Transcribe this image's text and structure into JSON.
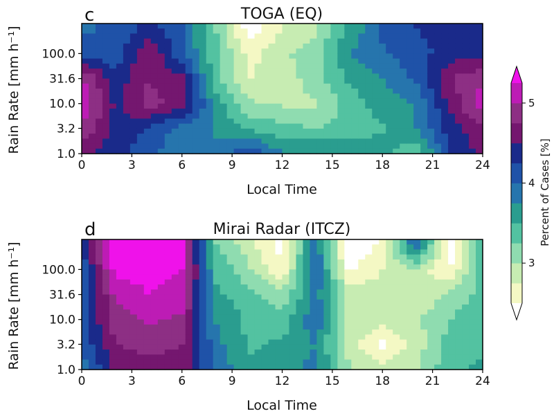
{
  "figure": {
    "colorbar": {
      "label": "Percent of Cases [%]",
      "tick_labels": [
        "3",
        "4",
        "5"
      ],
      "levels": [
        2.5,
        2.75,
        3.0,
        3.25,
        3.5,
        3.75,
        4.0,
        4.25,
        4.5,
        4.75,
        5.0,
        5.25,
        5.5
      ],
      "colors": [
        "#ffffff",
        "#f4f8c4",
        "#c7ecb2",
        "#8fdcb0",
        "#53c2a1",
        "#2a9d8f",
        "#2675ad",
        "#1f52a8",
        "#1a2a8a",
        "#74176f",
        "#8d2f84",
        "#bd1cb5",
        "#ef12ea"
      ],
      "extend": "both"
    }
  },
  "chart_data": [
    {
      "type": "heatmap",
      "panel": "c",
      "title": "TOGA (EQ)",
      "xlabel": "Local Time",
      "ylabel": "Rain Rate [mm h⁻¹]",
      "xticks": [
        "0",
        "3",
        "6",
        "9",
        "12",
        "15",
        "18",
        "21",
        "24"
      ],
      "yticks": [
        "1.0",
        "3.2",
        "10.0",
        "31.6",
        "100.0"
      ],
      "xlim": [
        0,
        24
      ],
      "ylim_log10": [
        0,
        2.6
      ],
      "x": [
        0,
        2,
        4,
        6,
        8,
        10,
        12,
        14,
        16,
        18,
        20,
        22,
        24
      ],
      "y_log10": [
        0,
        0.5,
        1.0,
        1.5,
        2.0,
        2.5
      ],
      "z": [
        [
          4.8,
          4.6,
          4.3,
          4.1,
          4.0,
          4.5,
          4.0,
          4.0,
          4.0,
          3.9,
          3.5,
          4.5,
          4.8
        ],
        [
          5.2,
          4.7,
          4.5,
          4.1,
          4.0,
          3.7,
          3.6,
          3.5,
          3.6,
          3.7,
          4.0,
          4.6,
          5.0
        ],
        [
          5.5,
          4.7,
          5.1,
          4.9,
          3.9,
          3.3,
          3.2,
          3.2,
          3.6,
          3.9,
          4.0,
          4.8,
          5.4
        ],
        [
          5.3,
          4.6,
          5.0,
          4.8,
          3.6,
          3.0,
          3.1,
          3.4,
          3.8,
          4.0,
          4.3,
          5.0,
          5.2
        ],
        [
          4.4,
          4.3,
          5.0,
          4.3,
          3.6,
          2.9,
          3.2,
          3.4,
          4.0,
          4.2,
          4.4,
          4.6,
          4.7
        ],
        [
          4.2,
          4.3,
          4.6,
          4.3,
          3.5,
          2.6,
          3.0,
          3.2,
          3.8,
          4.3,
          4.5,
          4.6,
          4.6
        ]
      ]
    },
    {
      "type": "heatmap",
      "panel": "d",
      "title": "Mirai Radar (ITCZ)",
      "xlabel": "Local Time",
      "ylabel": "Rain Rate [mm h⁻¹]",
      "xticks": [
        "0",
        "3",
        "6",
        "9",
        "12",
        "15",
        "18",
        "21",
        "24"
      ],
      "yticks": [
        "1.0",
        "3.2",
        "10.0",
        "31.6",
        "100.0"
      ],
      "xlim": [
        0,
        24
      ],
      "ylim_log10": [
        0,
        2.6
      ],
      "x": [
        0,
        2,
        4,
        6,
        8,
        10,
        12,
        14,
        16,
        18,
        20,
        22,
        24
      ],
      "y_log10": [
        0,
        0.5,
        1.0,
        1.5,
        2.0,
        2.5
      ],
      "z": [
        [
          4.1,
          4.8,
          4.9,
          4.9,
          4.2,
          3.8,
          3.9,
          4.1,
          3.3,
          3.1,
          3.2,
          3.7,
          3.8
        ],
        [
          4.3,
          5.0,
          5.1,
          5.0,
          4.1,
          3.7,
          3.8,
          4.0,
          3.1,
          2.7,
          3.1,
          3.6,
          3.7
        ],
        [
          4.4,
          5.1,
          5.3,
          5.2,
          4.0,
          3.7,
          3.6,
          4.2,
          3.2,
          3.1,
          3.2,
          3.5,
          3.7
        ],
        [
          4.2,
          5.3,
          5.5,
          5.4,
          3.8,
          3.6,
          3.3,
          4.1,
          3.2,
          3.1,
          3.0,
          3.3,
          3.6
        ],
        [
          4.3,
          5.6,
          5.6,
          5.5,
          3.7,
          3.3,
          2.8,
          4.3,
          2.7,
          3.0,
          3.2,
          2.7,
          3.7
        ],
        [
          4.5,
          5.7,
          5.7,
          5.6,
          3.5,
          3.1,
          2.6,
          4.2,
          2.5,
          2.8,
          4.3,
          2.6,
          3.8
        ]
      ]
    }
  ]
}
